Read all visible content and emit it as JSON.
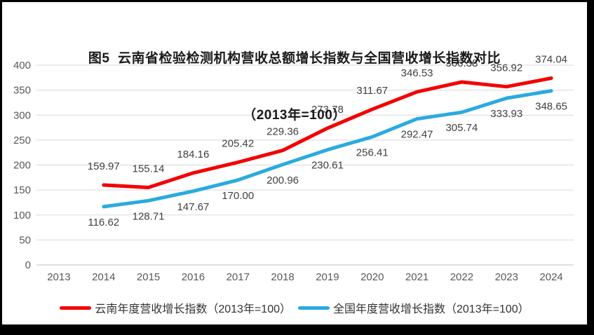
{
  "title": {
    "line1": "图5  云南省检验检测机构营收总额增长指数与全国营收增长指数对比",
    "line2": "（2013年=100）"
  },
  "chart_data": {
    "type": "line",
    "title": "图5 云南省检验检测机构营收总额增长指数与全国营收增长指数对比（2013年=100）",
    "categories": [
      "2013",
      "2014",
      "2015",
      "2016",
      "2017",
      "2018",
      "2019",
      "2020",
      "2021",
      "2022",
      "2023",
      "2024"
    ],
    "series": [
      {
        "name": "云南年度营收增长指数（2013年=100）",
        "color": "#f30000",
        "label_position": "above",
        "values": [
          null,
          159.97,
          155.14,
          184.16,
          205.42,
          229.36,
          273.78,
          311.67,
          346.53,
          366.38,
          356.92,
          374.04
        ]
      },
      {
        "name": "全国年度营收增长指数（2013年=100）",
        "color": "#2baadf",
        "label_position": "below",
        "values": [
          null,
          116.62,
          128.71,
          147.67,
          170.0,
          200.96,
          230.61,
          256.41,
          292.47,
          305.74,
          333.93,
          348.65
        ]
      }
    ],
    "ylim": [
      0,
      400
    ],
    "ytick_step": 50,
    "yticks": [
      "0",
      "50",
      "100",
      "150",
      "200",
      "250",
      "300",
      "350",
      "400"
    ],
    "grid": true,
    "legend_position": "bottom",
    "data_labels": true,
    "data_label_decimals": 2
  },
  "styles": {
    "gridline_color": "#d9d9d9",
    "axisline_color": "#c0c0c0",
    "tick_label_color": "#595959",
    "data_label_color": "#404040",
    "title_color": "#1a1a1a",
    "legend_text_color": "#333333",
    "frame_color": "#000000",
    "background_color": "#ffffff"
  }
}
